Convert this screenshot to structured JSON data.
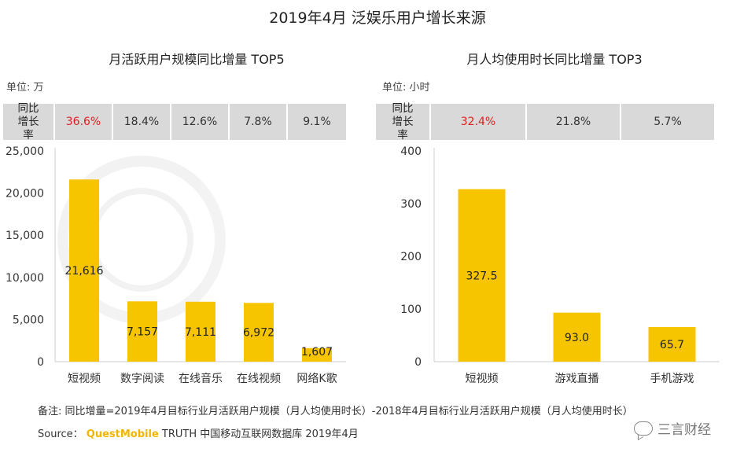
{
  "title": "2019年4月 泛娱乐用户增长来源",
  "note": "备注:   同比增量=2019年4月目标行业月活跃用户规模（月人均使用时长）-2018年4月目标行业月活跃用户规模（月人均使用时长）",
  "source": {
    "prefix": "Source：",
    "brand": "QuestMobile",
    "rest": " TRUTH 中国移动互联网数据库 2019年4月"
  },
  "watermark": "三言财经",
  "chart_data": [
    {
      "type": "bar",
      "title": "月活跃用户规模同比增量 TOP5",
      "unit_label": "单位: 万",
      "categories": [
        "短视频",
        "数字阅读",
        "在线音乐",
        "在线视频",
        "网络K歌"
      ],
      "values": [
        21616,
        7157,
        7111,
        6972,
        1607
      ],
      "value_labels": [
        "21,616",
        "7,157",
        "7,111",
        "6,972",
        "1,607"
      ],
      "yticks": [
        "0",
        "5,000",
        "10,000",
        "15,000",
        "20,000",
        "25,000"
      ],
      "ylim": [
        0,
        25000
      ],
      "growth_header": "同比增长率",
      "growth_rates": [
        "36.6%",
        "18.4%",
        "12.6%",
        "7.8%",
        "9.1%"
      ],
      "highlight_index": 0,
      "bar_color": "#f7c400",
      "highlight_color": "#e02020"
    },
    {
      "type": "bar",
      "title": "月人均使用时长同比增量 TOP3",
      "unit_label": "单位: 小时",
      "categories": [
        "短视频",
        "游戏直播",
        "手机游戏"
      ],
      "values": [
        327.5,
        93.0,
        65.7
      ],
      "value_labels": [
        "327.5",
        "93.0",
        "65.7"
      ],
      "yticks": [
        "0",
        "100",
        "200",
        "300",
        "400"
      ],
      "ylim": [
        0,
        400
      ],
      "growth_header": "同比增长率",
      "growth_rates": [
        "32.4%",
        "21.8%",
        "5.7%"
      ],
      "highlight_index": 0,
      "bar_color": "#f7c400",
      "highlight_color": "#e02020"
    }
  ]
}
